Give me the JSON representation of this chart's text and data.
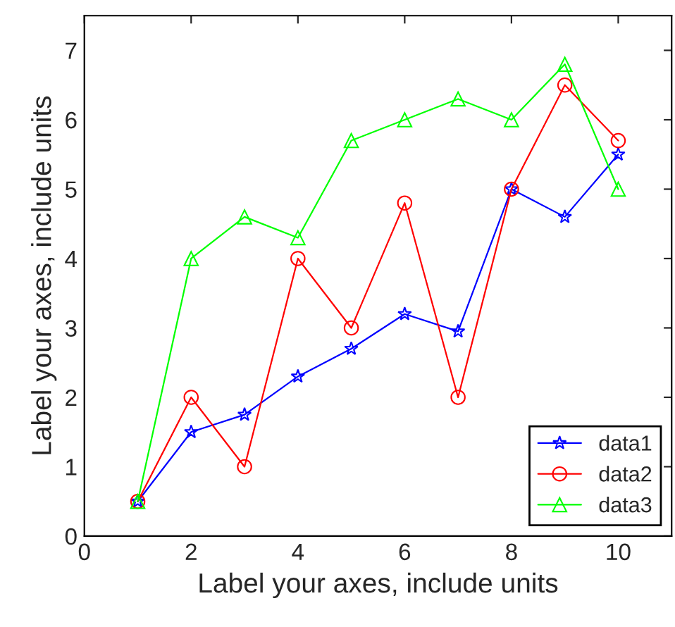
{
  "chart_data": {
    "type": "line",
    "xlabel": "Label your axes, include units",
    "ylabel": "Label your axes, include units",
    "x": [
      1,
      2,
      3,
      4,
      5,
      6,
      7,
      8,
      9,
      10
    ],
    "series": [
      {
        "name": "data1",
        "color": "#0000ff",
        "marker": "star",
        "values": [
          0.5,
          1.5,
          1.75,
          2.3,
          2.7,
          3.2,
          2.95,
          5.0,
          4.6,
          5.5
        ]
      },
      {
        "name": "data2",
        "color": "#ff0000",
        "marker": "circle",
        "values": [
          0.5,
          2.0,
          1.0,
          4.0,
          3.0,
          4.8,
          2.0,
          5.0,
          6.5,
          5.7
        ]
      },
      {
        "name": "data3",
        "color": "#00ff00",
        "marker": "triangle",
        "values": [
          0.5,
          4.0,
          4.6,
          4.3,
          5.7,
          6.0,
          6.3,
          6.0,
          6.8,
          5.0
        ]
      }
    ],
    "xlim": [
      0,
      11
    ],
    "ylim": [
      0,
      7.5
    ],
    "xticks": [
      0,
      2,
      4,
      6,
      8,
      10
    ],
    "yticks": [
      0,
      1,
      2,
      3,
      4,
      5,
      6,
      7
    ],
    "legend": "bottom right",
    "grid": false,
    "line_style": "solid"
  }
}
